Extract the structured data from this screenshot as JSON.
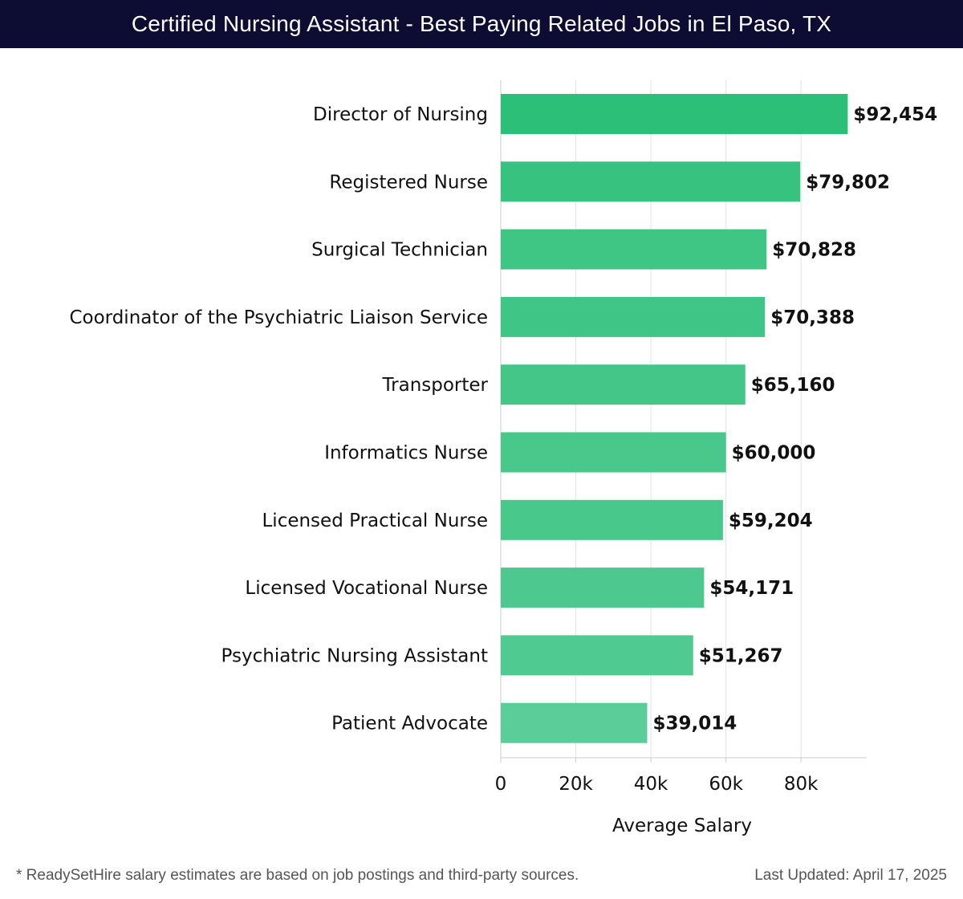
{
  "header": {
    "title": "Certified Nursing Assistant - Best Paying Related Jobs in El Paso, TX"
  },
  "chart_data": {
    "type": "bar",
    "orientation": "horizontal",
    "categories": [
      "Director of Nursing",
      "Registered Nurse",
      "Surgical Technician",
      "Coordinator of the Psychiatric Liaison Service",
      "Transporter",
      "Informatics Nurse",
      "Licensed Practical Nurse",
      "Licensed Vocational Nurse",
      "Psychiatric Nursing Assistant",
      "Patient Advocate"
    ],
    "values": [
      92454,
      79802,
      70828,
      70388,
      65160,
      60000,
      59204,
      54171,
      51267,
      39014
    ],
    "value_labels": [
      "$92,454",
      "$79,802",
      "$70,828",
      "$70,388",
      "$65,160",
      "$60,000",
      "$59,204",
      "$54,171",
      "$51,267",
      "$39,014"
    ],
    "xlabel": "Average Salary",
    "ylabel": "",
    "xlim": [
      0,
      97500
    ],
    "x_ticks": [
      0,
      20000,
      40000,
      60000,
      80000
    ],
    "x_tick_labels": [
      "0",
      "20k",
      "40k",
      "60k",
      "80k"
    ],
    "grid": true,
    "colors": {
      "bar_max": "#2cbf77",
      "bar_min": "#5acd98",
      "grid": "#e3e3e3",
      "axis": "#cccccc",
      "text": "#111111"
    }
  },
  "footer": {
    "note": "* ReadySetHire salary estimates are based on job postings and third-party sources.",
    "updated": "Last Updated: April 17, 2025"
  }
}
